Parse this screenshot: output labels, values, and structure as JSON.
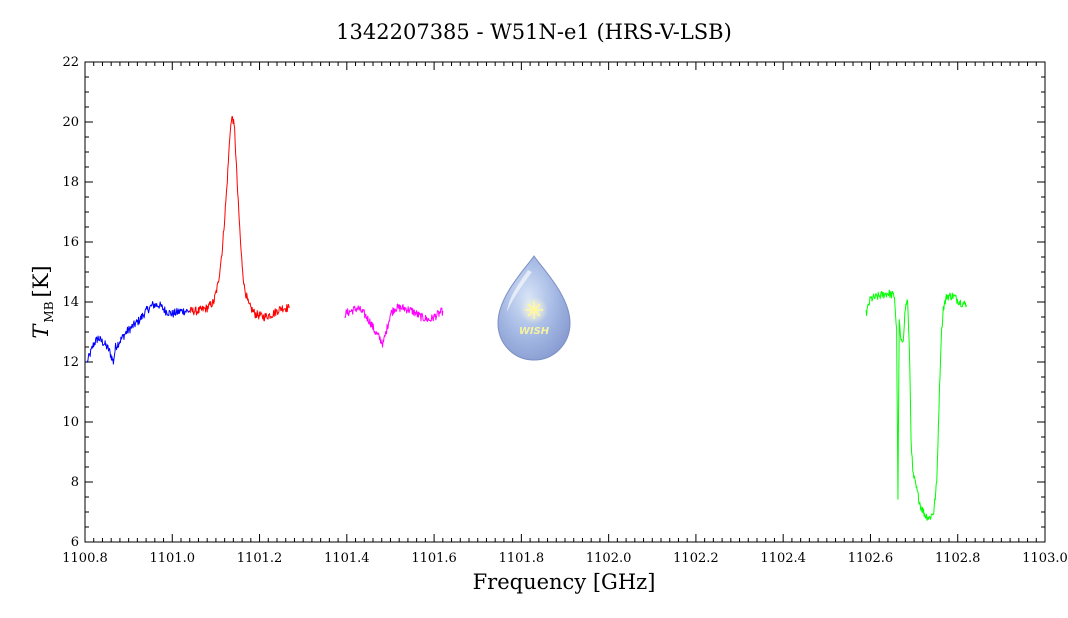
{
  "chart_data": {
    "type": "line",
    "title": "1342207385 - W51N-e1 (HRS-V-LSB)",
    "xlabel": "Frequency [GHz]",
    "ylabel": {
      "main": "T",
      "sub": "MB",
      "unit": "[K]"
    },
    "xlim": [
      1100.8,
      1103.0
    ],
    "ylim": [
      6,
      22
    ],
    "x_ticks": [
      "1100.8",
      "1101.0",
      "1101.2",
      "1101.4",
      "1101.6",
      "1101.8",
      "1102.0",
      "1102.2",
      "1102.4",
      "1102.6",
      "1102.8",
      "1103.0"
    ],
    "y_ticks": [
      "6",
      "8",
      "10",
      "12",
      "14",
      "16",
      "18",
      "20",
      "22"
    ],
    "grid": false,
    "series": [
      {
        "color": "#0000ff",
        "x": [
          1100.805,
          1100.82,
          1100.83,
          1100.845,
          1100.855,
          1100.865,
          1100.87,
          1100.88,
          1100.895,
          1100.91,
          1100.925,
          1100.94,
          1100.955,
          1100.97,
          1100.985,
          1101.0,
          1101.02,
          1101.04
        ],
        "y": [
          12.0,
          12.6,
          12.8,
          12.6,
          12.4,
          12.0,
          12.5,
          12.7,
          13.0,
          13.2,
          13.4,
          13.7,
          13.9,
          13.9,
          13.7,
          13.6,
          13.7,
          13.7
        ]
      },
      {
        "color": "#ff0000",
        "x": [
          1101.04,
          1101.06,
          1101.08,
          1101.095,
          1101.105,
          1101.115,
          1101.125,
          1101.133,
          1101.138,
          1101.143,
          1101.15,
          1101.158,
          1101.165,
          1101.175,
          1101.19,
          1101.21,
          1101.23,
          1101.25,
          1101.268
        ],
        "y": [
          13.7,
          13.7,
          13.8,
          14.0,
          14.6,
          15.8,
          17.8,
          19.8,
          20.2,
          19.7,
          17.6,
          15.6,
          14.5,
          13.9,
          13.6,
          13.5,
          13.6,
          13.8,
          13.8
        ]
      },
      {
        "color": "#ff00ff",
        "x": [
          1101.395,
          1101.41,
          1101.425,
          1101.44,
          1101.455,
          1101.465,
          1101.475,
          1101.483,
          1101.49,
          1101.5,
          1101.51,
          1101.53,
          1101.55,
          1101.57,
          1101.59,
          1101.61,
          1101.62
        ],
        "y": [
          13.6,
          13.7,
          13.8,
          13.6,
          13.3,
          13.0,
          12.8,
          12.6,
          13.0,
          13.6,
          13.8,
          13.8,
          13.7,
          13.5,
          13.4,
          13.6,
          13.7
        ]
      },
      {
        "color": "#00ff00",
        "x": [
          1102.59,
          1102.6,
          1102.62,
          1102.64,
          1102.655,
          1102.66,
          1102.663,
          1102.666,
          1102.67,
          1102.675,
          1102.68,
          1102.685,
          1102.69,
          1102.693,
          1102.697,
          1102.705,
          1102.715,
          1102.725,
          1102.735,
          1102.745,
          1102.752,
          1102.757,
          1102.762,
          1102.767,
          1102.775,
          1102.79,
          1102.805,
          1102.82
        ],
        "y": [
          13.6,
          14.1,
          14.2,
          14.3,
          14.2,
          13.0,
          7.5,
          13.4,
          12.6,
          12.8,
          13.8,
          14.1,
          12.0,
          9.5,
          8.3,
          7.8,
          7.2,
          6.9,
          6.8,
          7.0,
          8.0,
          10.5,
          12.8,
          13.8,
          14.2,
          14.2,
          14.0,
          13.9
        ]
      }
    ]
  },
  "logo": {
    "text": "WISH"
  }
}
